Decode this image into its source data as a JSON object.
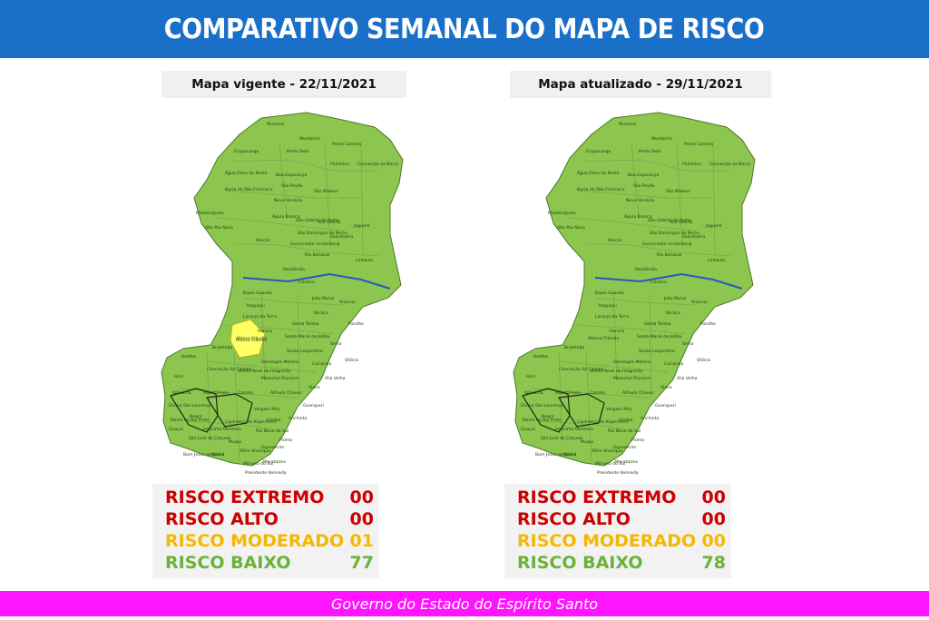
{
  "header": {
    "title": "COMPARATIVO SEMANAL DO MAPA DE RISCO"
  },
  "colors": {
    "header_bg": "#1a6fc9",
    "footer_bg": "#ff14ff",
    "risk_low": "#8cc64f",
    "risk_moderate": "#ffff66",
    "river": "#2a55c8",
    "extremo_text": "#cc0000",
    "alto_text": "#cc0000",
    "moderado_text": "#f5b800",
    "baixo_text": "#6ab23a"
  },
  "maps": [
    {
      "subtitle": "Mapa vigente - 22/11/2021",
      "highlight_label": "Afonso Cláudio",
      "risk": [
        {
          "label": "RISCO EXTREMO",
          "value": "00"
        },
        {
          "label": "RISCO ALTO",
          "value": "00"
        },
        {
          "label": "RISCO MODERADO",
          "value": "01"
        },
        {
          "label": "RISCO BAIXO",
          "value": "77"
        }
      ]
    },
    {
      "subtitle": "Mapa atualizado - 29/11/2021",
      "highlight_label": "",
      "risk": [
        {
          "label": "RISCO EXTREMO",
          "value": "00"
        },
        {
          "label": "RISCO ALTO",
          "value": "00"
        },
        {
          "label": "RISCO MODERADO",
          "value": "00"
        },
        {
          "label": "RISCO BAIXO",
          "value": "78"
        }
      ]
    }
  ],
  "municipalities": [
    "Mucurici",
    "Montanha",
    "Pedro Canário",
    "Ecoporanga",
    "Ponto Belo",
    "Pinheiros",
    "Conceição da Barra",
    "Água Doce do Norte",
    "Boa Esperança",
    "Barra de São Francisco",
    "Vila Pavão",
    "São Mateus",
    "Nova Venécia",
    "Mantenópolis",
    "Águia Branca",
    "São Gabriel da Palha",
    "Vila Valério",
    "Jaguaré",
    "Alto Rio Novo",
    "São Domingos do Norte",
    "Pancas",
    "Sooretama",
    "Governador Lindenberg",
    "Rio Bananal",
    "Linhares",
    "Marilândia",
    "Colatina",
    "Baixo Guandu",
    "João Neiva",
    "Aracruz",
    "Itaguaçu",
    "Ibiraçu",
    "Laranja da Terra",
    "Fundão",
    "Itarana",
    "Santa Teresa",
    "Afonso Cláudio",
    "Santa Maria de Jetibá",
    "Serra",
    "Brejetuba",
    "Santa Leopoldina",
    "Ibatiba",
    "Domingos Martins",
    "Cariacica",
    "Vitória",
    "Iúna",
    "Conceição do Castelo",
    "Venda Nova do Imigrante",
    "Vila Velha",
    "Ibitirama",
    "Marechal Floriano",
    "Viana",
    "Divino São Lourenço",
    "Muniz Freire",
    "Castelo",
    "Alfredo Chaves",
    "Guarapari",
    "Dores do Rio Preto",
    "Alegre",
    "Vargem Alta",
    "Anchieta",
    "Guaçuí",
    "Jerônimo Monteiro",
    "Cachoeiro de Itapemirim",
    "Iconha",
    "Rio Novo do Sul",
    "Piúma",
    "São José do Calçado",
    "Muqui",
    "Itapemirim",
    "Bom Jesus do Norte",
    "Apiacá",
    "Atílio Vivácqua",
    "Mimoso do Sul",
    "Marataízes",
    "Presidente Kennedy"
  ]
}
